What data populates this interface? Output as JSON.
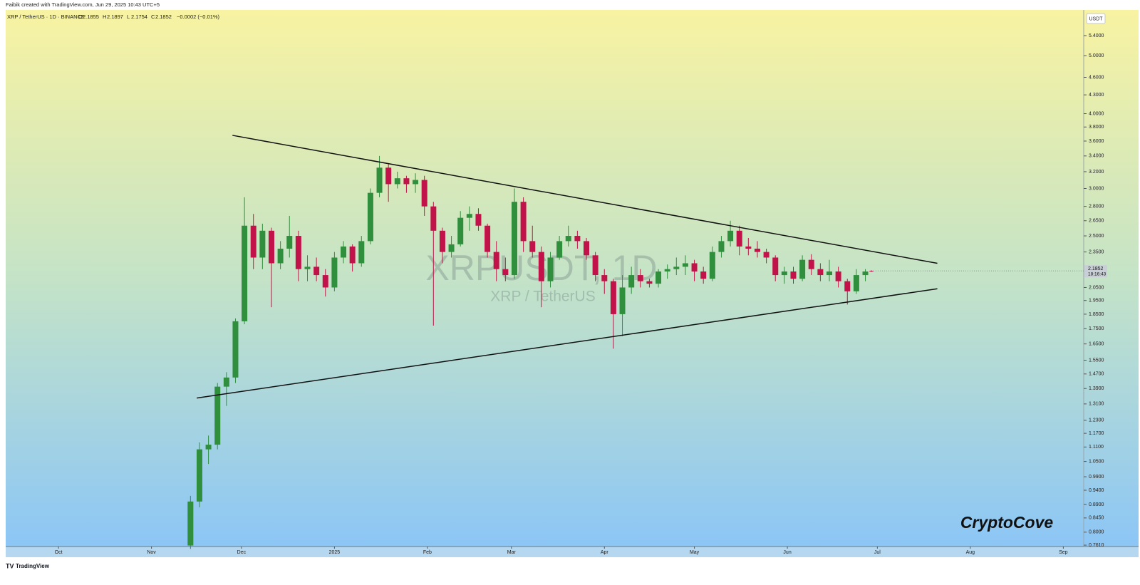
{
  "header": {
    "author_line": "Faibik created with TradingView.com, Jun 29, 2025 10:43 UTC+5",
    "symbol_line": "XRP / TetherUS · 1D · BINANCE",
    "ohlc_labels": [
      "O",
      "H",
      "L",
      "C"
    ],
    "change": "−0.0002 (−0.01%)"
  },
  "chart_data": {
    "type": "candlestick",
    "watermark": "XRPUSDT, 1D",
    "watermark_sub": "XRP / TetherUS",
    "signature": "CryptoCove",
    "currency": "USDT",
    "countdown": "18:16:43",
    "log_scale": true,
    "grid": false,
    "up_color": "#2f8f3c",
    "down_color": "#c2124a",
    "line_color": "#111111",
    "xlim": [
      -17.6,
      341.8
    ],
    "xticks": [
      {
        "value": 0,
        "label": "Oct"
      },
      {
        "value": 31,
        "label": "Nov"
      },
      {
        "value": 61,
        "label": "Dec"
      },
      {
        "value": 92,
        "label": "2025"
      },
      {
        "value": 123,
        "label": "Feb"
      },
      {
        "value": 151,
        "label": "Mar"
      },
      {
        "value": 182,
        "label": "Apr"
      },
      {
        "value": 212,
        "label": "May"
      },
      {
        "value": 243,
        "label": "Jun"
      },
      {
        "value": 273,
        "label": "Jul"
      },
      {
        "value": 304,
        "label": "Aug"
      },
      {
        "value": 335,
        "label": "Sep"
      }
    ],
    "ylim": [
      0.757,
      5.96
    ],
    "yticks": [
      {
        "value": 5.4,
        "label": "5.4000"
      },
      {
        "value": 5.0,
        "label": "5.0000"
      },
      {
        "value": 4.6,
        "label": "4.6000"
      },
      {
        "value": 4.3,
        "label": "4.3000"
      },
      {
        "value": 4.0,
        "label": "4.0000"
      },
      {
        "value": 3.8,
        "label": "3.8000"
      },
      {
        "value": 3.6,
        "label": "3.6000"
      },
      {
        "value": 3.4,
        "label": "3.4000"
      },
      {
        "value": 3.2,
        "label": "3.2000"
      },
      {
        "value": 3.0,
        "label": "3.0000"
      },
      {
        "value": 2.8,
        "label": "2.8000"
      },
      {
        "value": 2.65,
        "label": "2.6500"
      },
      {
        "value": 2.5,
        "label": "2.5000"
      },
      {
        "value": 2.35,
        "label": "2.3500"
      },
      {
        "value": 2.05,
        "label": "2.0500"
      },
      {
        "value": 1.95,
        "label": "1.9500"
      },
      {
        "value": 1.85,
        "label": "1.8500"
      },
      {
        "value": 1.75,
        "label": "1.7500"
      },
      {
        "value": 1.65,
        "label": "1.6500"
      },
      {
        "value": 1.55,
        "label": "1.5500"
      },
      {
        "value": 1.47,
        "label": "1.4700"
      },
      {
        "value": 1.39,
        "label": "1.3900"
      },
      {
        "value": 1.31,
        "label": "1.3100"
      },
      {
        "value": 1.23,
        "label": "1.2300"
      },
      {
        "value": 1.17,
        "label": "1.1700"
      },
      {
        "value": 1.11,
        "label": "1.1100"
      },
      {
        "value": 1.05,
        "label": "1.0500"
      },
      {
        "value": 0.99,
        "label": "0.9900"
      },
      {
        "value": 0.94,
        "label": "0.9400"
      },
      {
        "value": 0.89,
        "label": "0.8900"
      },
      {
        "value": 0.845,
        "label": "0.8450"
      },
      {
        "value": 0.8,
        "label": "0.8000"
      },
      {
        "value": 0.761,
        "label": "0.7610"
      }
    ],
    "trendlines": [
      {
        "x": [
          58,
          293
        ],
        "values": [
          3.68,
          2.25
        ]
      },
      {
        "x": [
          46.1,
          293
        ],
        "values": [
          1.34,
          2.04
        ]
      }
    ],
    "candles": [
      {
        "x": 44,
        "open": 0.76,
        "high": 0.92,
        "low": 0.75,
        "close": 0.9
      },
      {
        "x": 47,
        "open": 0.9,
        "high": 1.13,
        "low": 0.88,
        "close": 1.1
      },
      {
        "x": 50,
        "open": 1.1,
        "high": 1.16,
        "low": 1.04,
        "close": 1.12
      },
      {
        "x": 53,
        "open": 1.12,
        "high": 1.42,
        "low": 1.1,
        "close": 1.4
      },
      {
        "x": 56,
        "open": 1.4,
        "high": 1.48,
        "low": 1.3,
        "close": 1.45
      },
      {
        "x": 59,
        "open": 1.45,
        "high": 1.82,
        "low": 1.42,
        "close": 1.8
      },
      {
        "x": 62,
        "open": 1.8,
        "high": 2.9,
        "low": 1.78,
        "close": 2.6
      },
      {
        "x": 65,
        "open": 2.6,
        "high": 2.72,
        "low": 2.2,
        "close": 2.3
      },
      {
        "x": 68,
        "open": 2.3,
        "high": 2.62,
        "low": 2.2,
        "close": 2.55
      },
      {
        "x": 71,
        "open": 2.55,
        "high": 2.58,
        "low": 1.9,
        "close": 2.25
      },
      {
        "x": 74,
        "open": 2.25,
        "high": 2.45,
        "low": 2.2,
        "close": 2.38
      },
      {
        "x": 77,
        "open": 2.38,
        "high": 2.7,
        "low": 2.3,
        "close": 2.5
      },
      {
        "x": 80,
        "open": 2.5,
        "high": 2.55,
        "low": 2.1,
        "close": 2.2
      },
      {
        "x": 83,
        "open": 2.2,
        "high": 2.32,
        "low": 2.1,
        "close": 2.22
      },
      {
        "x": 86,
        "open": 2.22,
        "high": 2.3,
        "low": 2.1,
        "close": 2.15
      },
      {
        "x": 89,
        "open": 2.15,
        "high": 2.2,
        "low": 1.98,
        "close": 2.05
      },
      {
        "x": 92,
        "open": 2.05,
        "high": 2.35,
        "low": 2.02,
        "close": 2.3
      },
      {
        "x": 95,
        "open": 2.3,
        "high": 2.45,
        "low": 2.25,
        "close": 2.4
      },
      {
        "x": 98,
        "open": 2.4,
        "high": 2.42,
        "low": 2.18,
        "close": 2.25
      },
      {
        "x": 101,
        "open": 2.25,
        "high": 2.5,
        "low": 2.22,
        "close": 2.45
      },
      {
        "x": 104,
        "open": 2.45,
        "high": 3.0,
        "low": 2.42,
        "close": 2.95
      },
      {
        "x": 107,
        "open": 2.95,
        "high": 3.4,
        "low": 2.9,
        "close": 3.25
      },
      {
        "x": 110,
        "open": 3.25,
        "high": 3.3,
        "low": 2.85,
        "close": 3.05
      },
      {
        "x": 113,
        "open": 3.05,
        "high": 3.2,
        "low": 3.0,
        "close": 3.12
      },
      {
        "x": 116,
        "open": 3.12,
        "high": 3.15,
        "low": 2.95,
        "close": 3.05
      },
      {
        "x": 119,
        "open": 3.05,
        "high": 3.18,
        "low": 2.95,
        "close": 3.1
      },
      {
        "x": 122,
        "open": 3.1,
        "high": 3.15,
        "low": 2.7,
        "close": 2.8
      },
      {
        "x": 125,
        "open": 2.8,
        "high": 2.85,
        "low": 1.77,
        "close": 2.55
      },
      {
        "x": 128,
        "open": 2.55,
        "high": 2.58,
        "low": 2.25,
        "close": 2.35
      },
      {
        "x": 131,
        "open": 2.35,
        "high": 2.5,
        "low": 2.3,
        "close": 2.42
      },
      {
        "x": 134,
        "open": 2.42,
        "high": 2.75,
        "low": 2.4,
        "close": 2.68
      },
      {
        "x": 137,
        "open": 2.68,
        "high": 2.8,
        "low": 2.55,
        "close": 2.72
      },
      {
        "x": 140,
        "open": 2.72,
        "high": 2.78,
        "low": 2.55,
        "close": 2.6
      },
      {
        "x": 143,
        "open": 2.6,
        "high": 2.62,
        "low": 2.3,
        "close": 2.35
      },
      {
        "x": 146,
        "open": 2.35,
        "high": 2.45,
        "low": 2.1,
        "close": 2.2
      },
      {
        "x": 149,
        "open": 2.2,
        "high": 2.3,
        "low": 2.1,
        "close": 2.15
      },
      {
        "x": 152,
        "open": 2.15,
        "high": 3.0,
        "low": 2.12,
        "close": 2.85
      },
      {
        "x": 155,
        "open": 2.85,
        "high": 2.9,
        "low": 2.35,
        "close": 2.45
      },
      {
        "x": 158,
        "open": 2.45,
        "high": 2.6,
        "low": 2.3,
        "close": 2.35
      },
      {
        "x": 161,
        "open": 2.35,
        "high": 2.4,
        "low": 1.9,
        "close": 2.1
      },
      {
        "x": 164,
        "open": 2.1,
        "high": 2.35,
        "low": 2.05,
        "close": 2.3
      },
      {
        "x": 167,
        "open": 2.3,
        "high": 2.5,
        "low": 2.28,
        "close": 2.45
      },
      {
        "x": 170,
        "open": 2.45,
        "high": 2.6,
        "low": 2.4,
        "close": 2.5
      },
      {
        "x": 173,
        "open": 2.5,
        "high": 2.55,
        "low": 2.38,
        "close": 2.45
      },
      {
        "x": 176,
        "open": 2.45,
        "high": 2.48,
        "low": 2.28,
        "close": 2.32
      },
      {
        "x": 179,
        "open": 2.32,
        "high": 2.35,
        "low": 2.1,
        "close": 2.15
      },
      {
        "x": 182,
        "open": 2.15,
        "high": 2.2,
        "low": 2.0,
        "close": 2.1
      },
      {
        "x": 185,
        "open": 2.1,
        "high": 2.12,
        "low": 1.62,
        "close": 1.85
      },
      {
        "x": 188,
        "open": 1.85,
        "high": 2.15,
        "low": 1.7,
        "close": 2.05
      },
      {
        "x": 191,
        "open": 2.05,
        "high": 2.22,
        "low": 2.0,
        "close": 2.15
      },
      {
        "x": 194,
        "open": 2.15,
        "high": 2.2,
        "low": 2.05,
        "close": 2.1
      },
      {
        "x": 197,
        "open": 2.1,
        "high": 2.12,
        "low": 2.05,
        "close": 2.08
      },
      {
        "x": 200,
        "open": 2.08,
        "high": 2.2,
        "low": 2.05,
        "close": 2.18
      },
      {
        "x": 203,
        "open": 2.18,
        "high": 2.24,
        "low": 2.12,
        "close": 2.2
      },
      {
        "x": 206,
        "open": 2.2,
        "high": 2.3,
        "low": 2.15,
        "close": 2.22
      },
      {
        "x": 209,
        "open": 2.22,
        "high": 2.32,
        "low": 2.15,
        "close": 2.25
      },
      {
        "x": 212,
        "open": 2.25,
        "high": 2.28,
        "low": 2.1,
        "close": 2.18
      },
      {
        "x": 215,
        "open": 2.18,
        "high": 2.22,
        "low": 2.08,
        "close": 2.12
      },
      {
        "x": 218,
        "open": 2.12,
        "high": 2.4,
        "low": 2.1,
        "close": 2.35
      },
      {
        "x": 221,
        "open": 2.35,
        "high": 2.5,
        "low": 2.3,
        "close": 2.45
      },
      {
        "x": 224,
        "open": 2.45,
        "high": 2.65,
        "low": 2.4,
        "close": 2.55
      },
      {
        "x": 227,
        "open": 2.55,
        "high": 2.6,
        "low": 2.32,
        "close": 2.4
      },
      {
        "x": 230,
        "open": 2.4,
        "high": 2.48,
        "low": 2.32,
        "close": 2.38
      },
      {
        "x": 233,
        "open": 2.38,
        "high": 2.45,
        "low": 2.3,
        "close": 2.35
      },
      {
        "x": 236,
        "open": 2.35,
        "high": 2.38,
        "low": 2.25,
        "close": 2.3
      },
      {
        "x": 239,
        "open": 2.3,
        "high": 2.32,
        "low": 2.1,
        "close": 2.15
      },
      {
        "x": 242,
        "open": 2.15,
        "high": 2.22,
        "low": 2.08,
        "close": 2.18
      },
      {
        "x": 245,
        "open": 2.18,
        "high": 2.22,
        "low": 2.08,
        "close": 2.12
      },
      {
        "x": 248,
        "open": 2.12,
        "high": 2.32,
        "low": 2.1,
        "close": 2.28
      },
      {
        "x": 251,
        "open": 2.28,
        "high": 2.33,
        "low": 2.15,
        "close": 2.2
      },
      {
        "x": 254,
        "open": 2.2,
        "high": 2.25,
        "low": 2.1,
        "close": 2.15
      },
      {
        "x": 257,
        "open": 2.15,
        "high": 2.28,
        "low": 2.1,
        "close": 2.18
      },
      {
        "x": 260,
        "open": 2.18,
        "high": 2.22,
        "low": 2.05,
        "close": 2.1
      },
      {
        "x": 263,
        "open": 2.1,
        "high": 2.12,
        "low": 1.92,
        "close": 2.02
      },
      {
        "x": 266,
        "open": 2.02,
        "high": 2.2,
        "low": 2.0,
        "close": 2.15
      },
      {
        "x": 269,
        "open": 2.15,
        "high": 2.2,
        "low": 2.1,
        "close": 2.18
      },
      {
        "x": 271,
        "open": 2.1855,
        "high": 2.1897,
        "low": 2.1754,
        "close": 2.1852
      }
    ]
  },
  "footer": {
    "brand": "TradingView"
  }
}
